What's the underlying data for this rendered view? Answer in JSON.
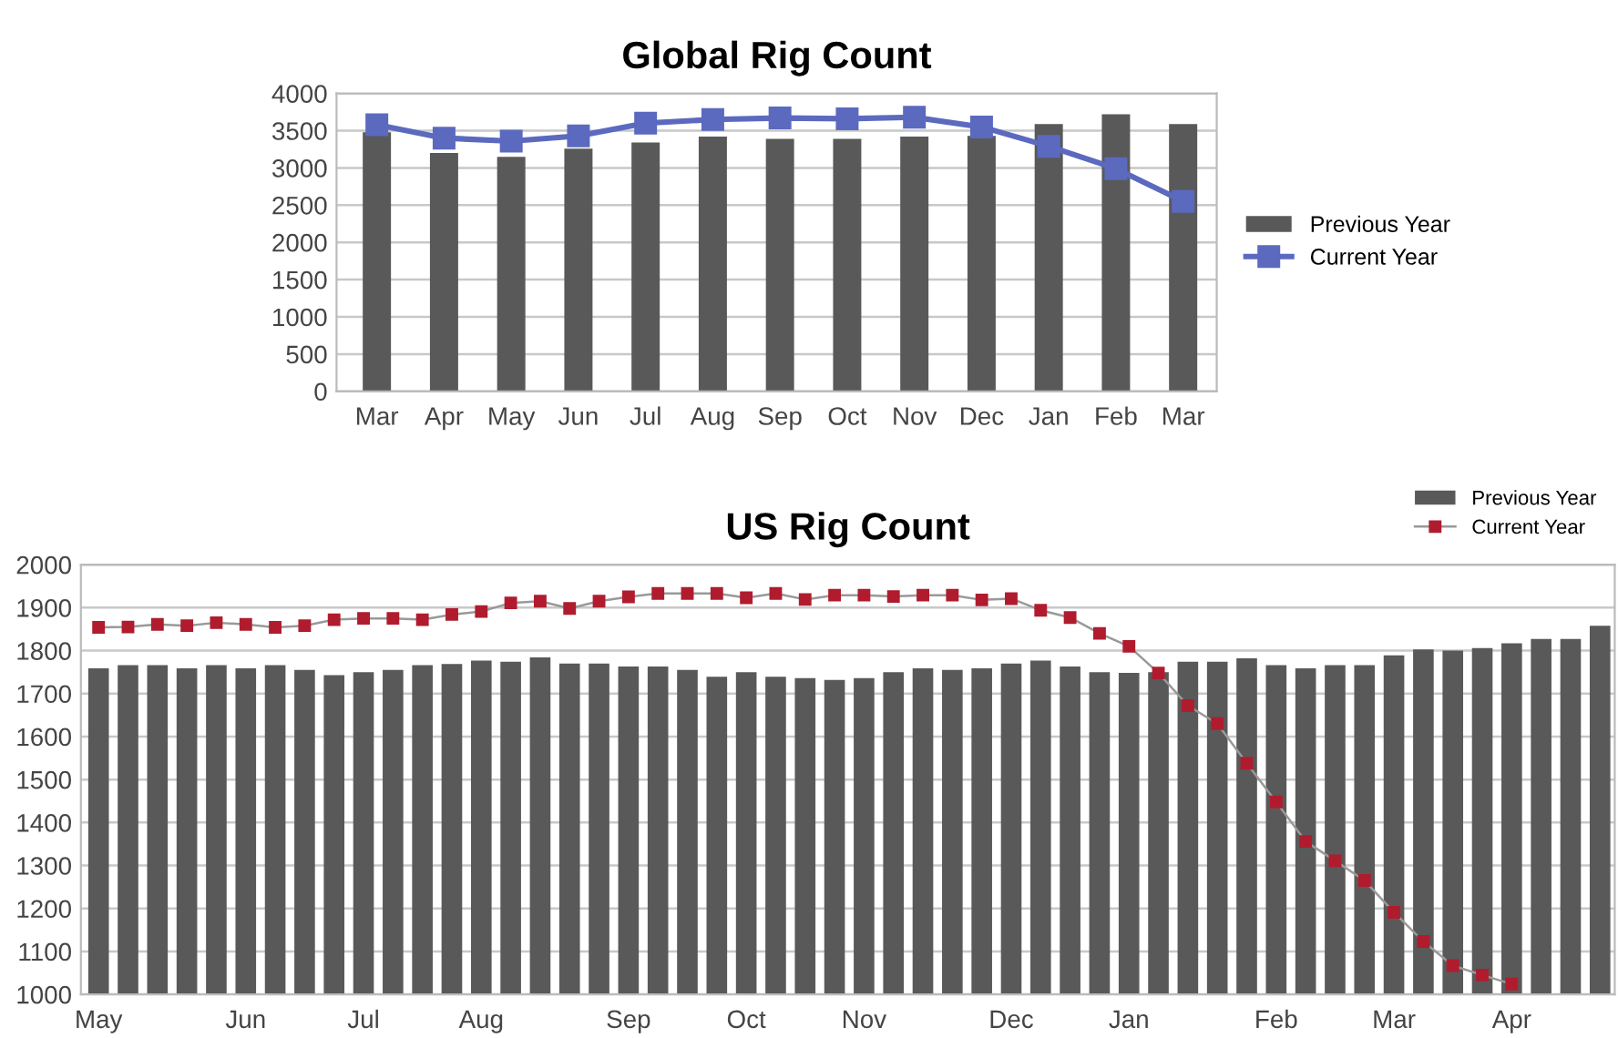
{
  "chart_data": [
    {
      "type": "bar",
      "title": "Global Rig Count",
      "categories": [
        "Mar",
        "Apr",
        "May",
        "Jun",
        "Jul",
        "Aug",
        "Sep",
        "Oct",
        "Nov",
        "Dec",
        "Jan",
        "Feb",
        "Mar"
      ],
      "ylim": [
        0,
        4000
      ],
      "yticks": [
        0,
        500,
        1000,
        1500,
        2000,
        2500,
        3000,
        3500,
        4000
      ],
      "grid": "y",
      "legend": "right",
      "series": [
        {
          "name": "Previous Year",
          "color": "#595959",
          "values": [
            3480,
            3200,
            3150,
            3260,
            3340,
            3420,
            3390,
            3390,
            3420,
            3430,
            3590,
            3720,
            3590
          ]
        },
        {
          "name": "Current Year",
          "type": "line",
          "color": "#5b6abf",
          "marker": "square",
          "values": [
            3580,
            3400,
            3360,
            3430,
            3600,
            3650,
            3670,
            3660,
            3680,
            3550,
            3290,
            2990,
            2550
          ]
        }
      ]
    },
    {
      "type": "bar",
      "title": "US Rig Count",
      "categories": [
        "May",
        null,
        null,
        null,
        null,
        "Jun",
        null,
        null,
        null,
        "Jul",
        null,
        null,
        null,
        "Aug",
        null,
        null,
        null,
        null,
        "Sep",
        null,
        null,
        null,
        "Oct",
        null,
        null,
        null,
        "Nov",
        null,
        null,
        null,
        null,
        "Dec",
        null,
        null,
        null,
        "Jan",
        null,
        null,
        null,
        null,
        "Feb",
        null,
        null,
        null,
        "Mar",
        null,
        null,
        null,
        "Apr",
        null,
        null,
        null
      ],
      "ylim": [
        1000,
        2000
      ],
      "yticks": [
        1000,
        1100,
        1200,
        1300,
        1400,
        1500,
        1600,
        1700,
        1800,
        1900,
        2000
      ],
      "grid": "y",
      "legend": "top right",
      "series": [
        {
          "name": "Previous Year",
          "color": "#595959",
          "values": [
            1759,
            1766,
            1766,
            1759,
            1766,
            1759,
            1766,
            1755,
            1743,
            1750,
            1755,
            1766,
            1769,
            1777,
            1774,
            1784,
            1770,
            1770,
            1763,
            1763,
            1755,
            1739,
            1750,
            1739,
            1736,
            1732,
            1736,
            1750,
            1759,
            1755,
            1759,
            1770,
            1777,
            1763,
            1750,
            1748,
            1750,
            1774,
            1774,
            1782,
            1766,
            1759,
            1766,
            1766,
            1789,
            1803,
            1800,
            1806,
            1817,
            1827,
            1827,
            1858
          ]
        },
        {
          "name": "Current Year",
          "type": "line",
          "color": "#b01c2e",
          "marker": "square",
          "values": [
            1854,
            1855,
            1861,
            1858,
            1865,
            1861,
            1854,
            1858,
            1872,
            1875,
            1875,
            1872,
            1884,
            1891,
            1911,
            1915,
            1898,
            1915,
            1925,
            1933,
            1933,
            1933,
            1923,
            1933,
            1919,
            1929,
            1929,
            1926,
            1929,
            1929,
            1918,
            1921,
            1894,
            1877,
            1840,
            1810,
            1748,
            1672,
            1630,
            1538,
            1448,
            1356,
            1311,
            1265,
            1191,
            1123,
            1067,
            1045,
            1024,
            null,
            null,
            null
          ]
        }
      ]
    }
  ]
}
